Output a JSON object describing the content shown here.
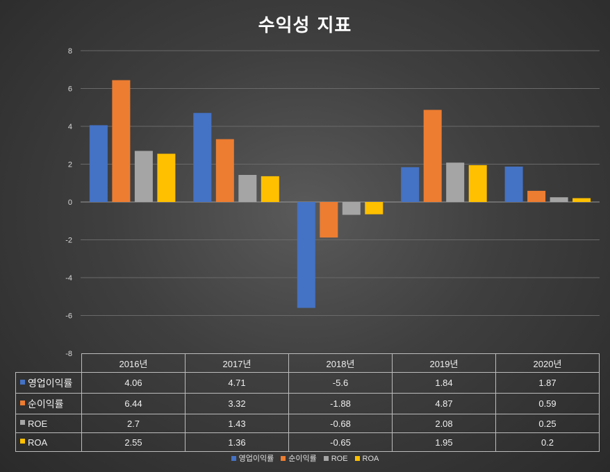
{
  "chart_data": {
    "type": "bar",
    "title": "수익성 지표",
    "categories": [
      "2016년",
      "2017년",
      "2018년",
      "2019년",
      "2020년"
    ],
    "series": [
      {
        "name": "영업이익률",
        "color": "#4472c4",
        "values": [
          4.06,
          4.71,
          -5.6,
          1.84,
          1.87
        ],
        "labels": [
          "4.06",
          "4.71",
          "-5.6",
          "1.84",
          "1.87"
        ]
      },
      {
        "name": "순이익률",
        "color": "#ed7d31",
        "values": [
          6.44,
          3.32,
          -1.88,
          4.87,
          0.59
        ],
        "labels": [
          "6.44",
          "3.32",
          "-1.88",
          "4.87",
          "0.59"
        ]
      },
      {
        "name": "ROE",
        "color": "#a5a5a5",
        "values": [
          2.7,
          1.43,
          -0.68,
          2.08,
          0.25
        ],
        "labels": [
          "2.7",
          "1.43",
          "-0.68",
          "2.08",
          "0.25"
        ]
      },
      {
        "name": "ROA",
        "color": "#ffc000",
        "values": [
          2.55,
          1.36,
          -0.65,
          1.95,
          0.2
        ],
        "labels": [
          "2.55",
          "1.36",
          "-0.65",
          "1.95",
          "0.2"
        ]
      }
    ],
    "ylim": [
      -8,
      8
    ],
    "yticks": [
      8,
      6,
      4,
      2,
      0,
      -2,
      -4,
      -6,
      -8
    ],
    "grid": true,
    "data_table": true,
    "legend_position": "bottom"
  }
}
